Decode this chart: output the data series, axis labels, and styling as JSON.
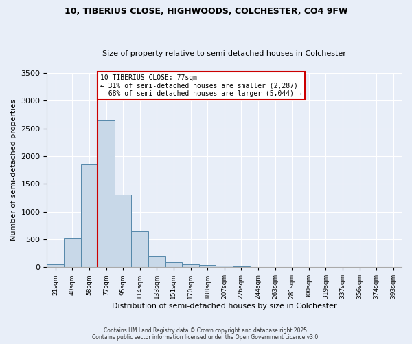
{
  "title1": "10, TIBERIUS CLOSE, HIGHWOODS, COLCHESTER, CO4 9FW",
  "title2": "Size of property relative to semi-detached houses in Colchester",
  "xlabel": "Distribution of semi-detached houses by size in Colchester",
  "ylabel": "Number of semi-detached properties",
  "property_label": "10 TIBERIUS CLOSE: 77sqm",
  "smaller_pct": 31,
  "smaller_count": "2,287",
  "larger_pct": 68,
  "larger_count": "5,044",
  "bin_labels": [
    "21sqm",
    "40sqm",
    "58sqm",
    "77sqm",
    "95sqm",
    "114sqm",
    "133sqm",
    "151sqm",
    "170sqm",
    "188sqm",
    "207sqm",
    "226sqm",
    "244sqm",
    "263sqm",
    "281sqm",
    "300sqm",
    "319sqm",
    "337sqm",
    "356sqm",
    "374sqm",
    "393sqm"
  ],
  "bin_values": [
    60,
    530,
    1850,
    2650,
    1310,
    650,
    200,
    95,
    50,
    40,
    30,
    20,
    10,
    5,
    2,
    1,
    1,
    0,
    0,
    0,
    0
  ],
  "bar_color": "#c8d8e8",
  "bar_edge_color": "#5588aa",
  "red_line_color": "#cc0000",
  "red_box_color": "#cc0000",
  "background_color": "#e8eef8",
  "grid_color": "#ffffff",
  "ylim": [
    0,
    3500
  ],
  "property_bin_idx": 3,
  "footnote1": "Contains HM Land Registry data © Crown copyright and database right 2025.",
  "footnote2": "Contains public sector information licensed under the Open Government Licence v3.0."
}
